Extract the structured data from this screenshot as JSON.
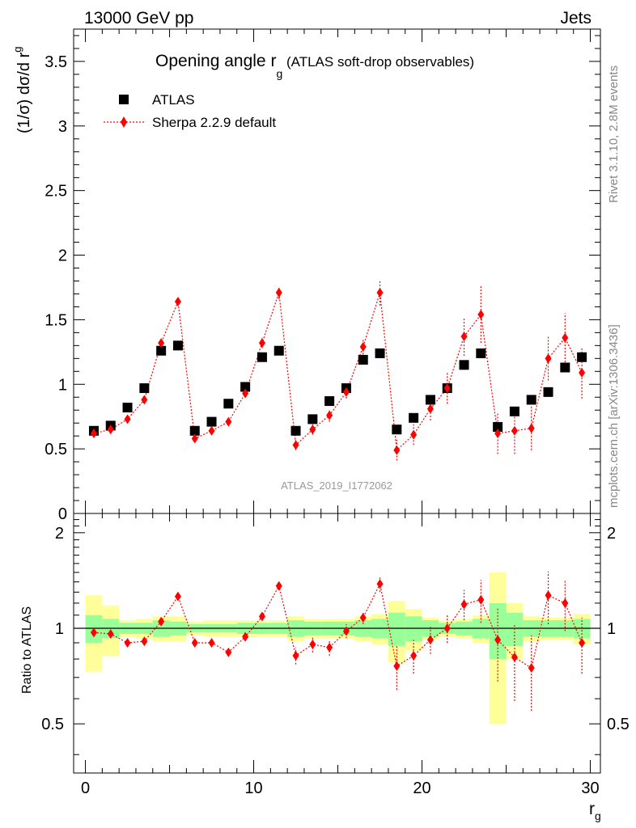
{
  "header": {
    "left": "13000 GeV pp",
    "right": "Jets"
  },
  "title": {
    "main": "Opening angle r",
    "sub": "g",
    "suffix": " (ATLAS soft-drop observables)"
  },
  "side_labels": {
    "rivet": "Rivet 3.1.10,  2.8M events",
    "mcplots": "mcplots.cern.ch [arXiv:1306.3436]"
  },
  "watermark": "ATLAS_2019_I1772062",
  "legend": {
    "data_label": "ATLAS",
    "mc_label": "Sherpa 2.2.9 default"
  },
  "colors": {
    "data": "#000000",
    "mc": "#ff0000",
    "band_inner": "#99ff99",
    "band_outer": "#ffff99"
  },
  "chart_data": [
    {
      "type": "scatter",
      "panel": "main",
      "ylabel": "(1/σ) dσ/d r_g",
      "ylim": [
        0,
        3.75
      ],
      "yticks": [
        0,
        0.5,
        1,
        1.5,
        2,
        2.5,
        3,
        3.5
      ],
      "ytick_labels": [
        "0",
        "0.5",
        "1",
        "1.5",
        "2",
        "2.5",
        "3",
        "3.5"
      ],
      "xlim": [
        -0.7,
        30.6
      ],
      "series": [
        {
          "name": "ATLAS",
          "x": [
            0.5,
            1.5,
            2.5,
            3.5,
            4.5,
            5.5,
            6.5,
            7.5,
            8.5,
            9.5,
            10.5,
            11.5,
            12.5,
            13.5,
            14.5,
            15.5,
            16.5,
            17.5,
            18.5,
            19.5,
            20.5,
            21.5,
            22.5,
            23.5,
            24.5,
            25.5,
            26.5,
            27.5,
            28.5,
            29.5
          ],
          "y": [
            0.64,
            0.68,
            0.82,
            0.97,
            1.26,
            1.3,
            0.64,
            0.71,
            0.85,
            0.98,
            1.21,
            1.26,
            0.64,
            0.73,
            0.87,
            0.97,
            1.19,
            1.24,
            0.65,
            0.74,
            0.88,
            0.97,
            1.15,
            1.24,
            0.67,
            0.79,
            0.88,
            0.94,
            1.13,
            1.21
          ]
        },
        {
          "name": "Sherpa 2.2.9 default",
          "x": [
            0.5,
            1.5,
            2.5,
            3.5,
            4.5,
            5.5,
            6.5,
            7.5,
            8.5,
            9.5,
            10.5,
            11.5,
            12.5,
            13.5,
            14.5,
            15.5,
            16.5,
            17.5,
            18.5,
            19.5,
            20.5,
            21.5,
            22.5,
            23.5,
            24.5,
            25.5,
            26.5,
            27.5,
            28.5,
            29.5
          ],
          "y": [
            0.62,
            0.65,
            0.73,
            0.88,
            1.32,
            1.64,
            0.58,
            0.64,
            0.71,
            0.93,
            1.32,
            1.71,
            0.53,
            0.65,
            0.76,
            0.94,
            1.29,
            1.71,
            0.49,
            0.61,
            0.81,
            0.97,
            1.37,
            1.54,
            0.62,
            0.64,
            0.66,
            1.2,
            1.36,
            1.09
          ],
          "yerr": [
            0.02,
            0.02,
            0.02,
            0.02,
            0.03,
            0.03,
            0.02,
            0.02,
            0.02,
            0.03,
            0.04,
            0.05,
            0.04,
            0.04,
            0.05,
            0.05,
            0.06,
            0.1,
            0.08,
            0.08,
            0.09,
            0.12,
            0.15,
            0.22,
            0.16,
            0.18,
            0.17,
            0.17,
            0.19,
            0.2
          ]
        }
      ]
    },
    {
      "type": "scatter",
      "panel": "ratio",
      "ylabel": "Ratio to ATLAS",
      "xlabel": "r_g",
      "ylim": [
        0.35,
        2.3
      ],
      "yticks": [
        0.5,
        1,
        2
      ],
      "ytick_labels": [
        "0.5",
        "1",
        "2"
      ],
      "xlim": [
        -0.7,
        30.6
      ],
      "xticks": [
        0,
        10,
        20,
        30
      ],
      "xtick_labels": [
        "0",
        "10",
        "20",
        "30"
      ],
      "band_inner_halfwidth": [
        0.1,
        0.07,
        0.04,
        0.04,
        0.06,
        0.05,
        0.03,
        0.03,
        0.03,
        0.04,
        0.04,
        0.04,
        0.06,
        0.05,
        0.05,
        0.05,
        0.06,
        0.07,
        0.12,
        0.09,
        0.06,
        0.04,
        0.05,
        0.07,
        0.2,
        0.12,
        0.06,
        0.06,
        0.06,
        0.07
      ],
      "band_outer_halfwidth": [
        0.27,
        0.18,
        0.06,
        0.07,
        0.09,
        0.09,
        0.05,
        0.06,
        0.06,
        0.06,
        0.06,
        0.06,
        0.09,
        0.07,
        0.07,
        0.07,
        0.09,
        0.11,
        0.22,
        0.15,
        0.08,
        0.06,
        0.07,
        0.1,
        0.5,
        0.2,
        0.09,
        0.08,
        0.08,
        0.11
      ],
      "series": [
        {
          "name": "Sherpa 2.2.9 default / ATLAS",
          "x": [
            0.5,
            1.5,
            2.5,
            3.5,
            4.5,
            5.5,
            6.5,
            7.5,
            8.5,
            9.5,
            10.5,
            11.5,
            12.5,
            13.5,
            14.5,
            15.5,
            16.5,
            17.5,
            18.5,
            19.5,
            20.5,
            21.5,
            22.5,
            23.5,
            24.5,
            25.5,
            26.5,
            27.5,
            28.5,
            29.5
          ],
          "y": [
            0.97,
            0.96,
            0.9,
            0.91,
            1.05,
            1.26,
            0.9,
            0.9,
            0.84,
            0.94,
            1.09,
            1.36,
            0.82,
            0.89,
            0.87,
            0.98,
            1.08,
            1.38,
            0.76,
            0.82,
            0.92,
            1.0,
            1.19,
            1.23,
            0.92,
            0.81,
            0.75,
            1.27,
            1.2,
            0.9
          ],
          "yerr": [
            0.02,
            0.02,
            0.02,
            0.02,
            0.02,
            0.02,
            0.02,
            0.02,
            0.02,
            0.03,
            0.03,
            0.03,
            0.05,
            0.05,
            0.05,
            0.05,
            0.05,
            0.08,
            0.12,
            0.1,
            0.09,
            0.1,
            0.13,
            0.19,
            0.24,
            0.22,
            0.2,
            0.24,
            0.22,
            0.18
          ]
        }
      ]
    }
  ]
}
